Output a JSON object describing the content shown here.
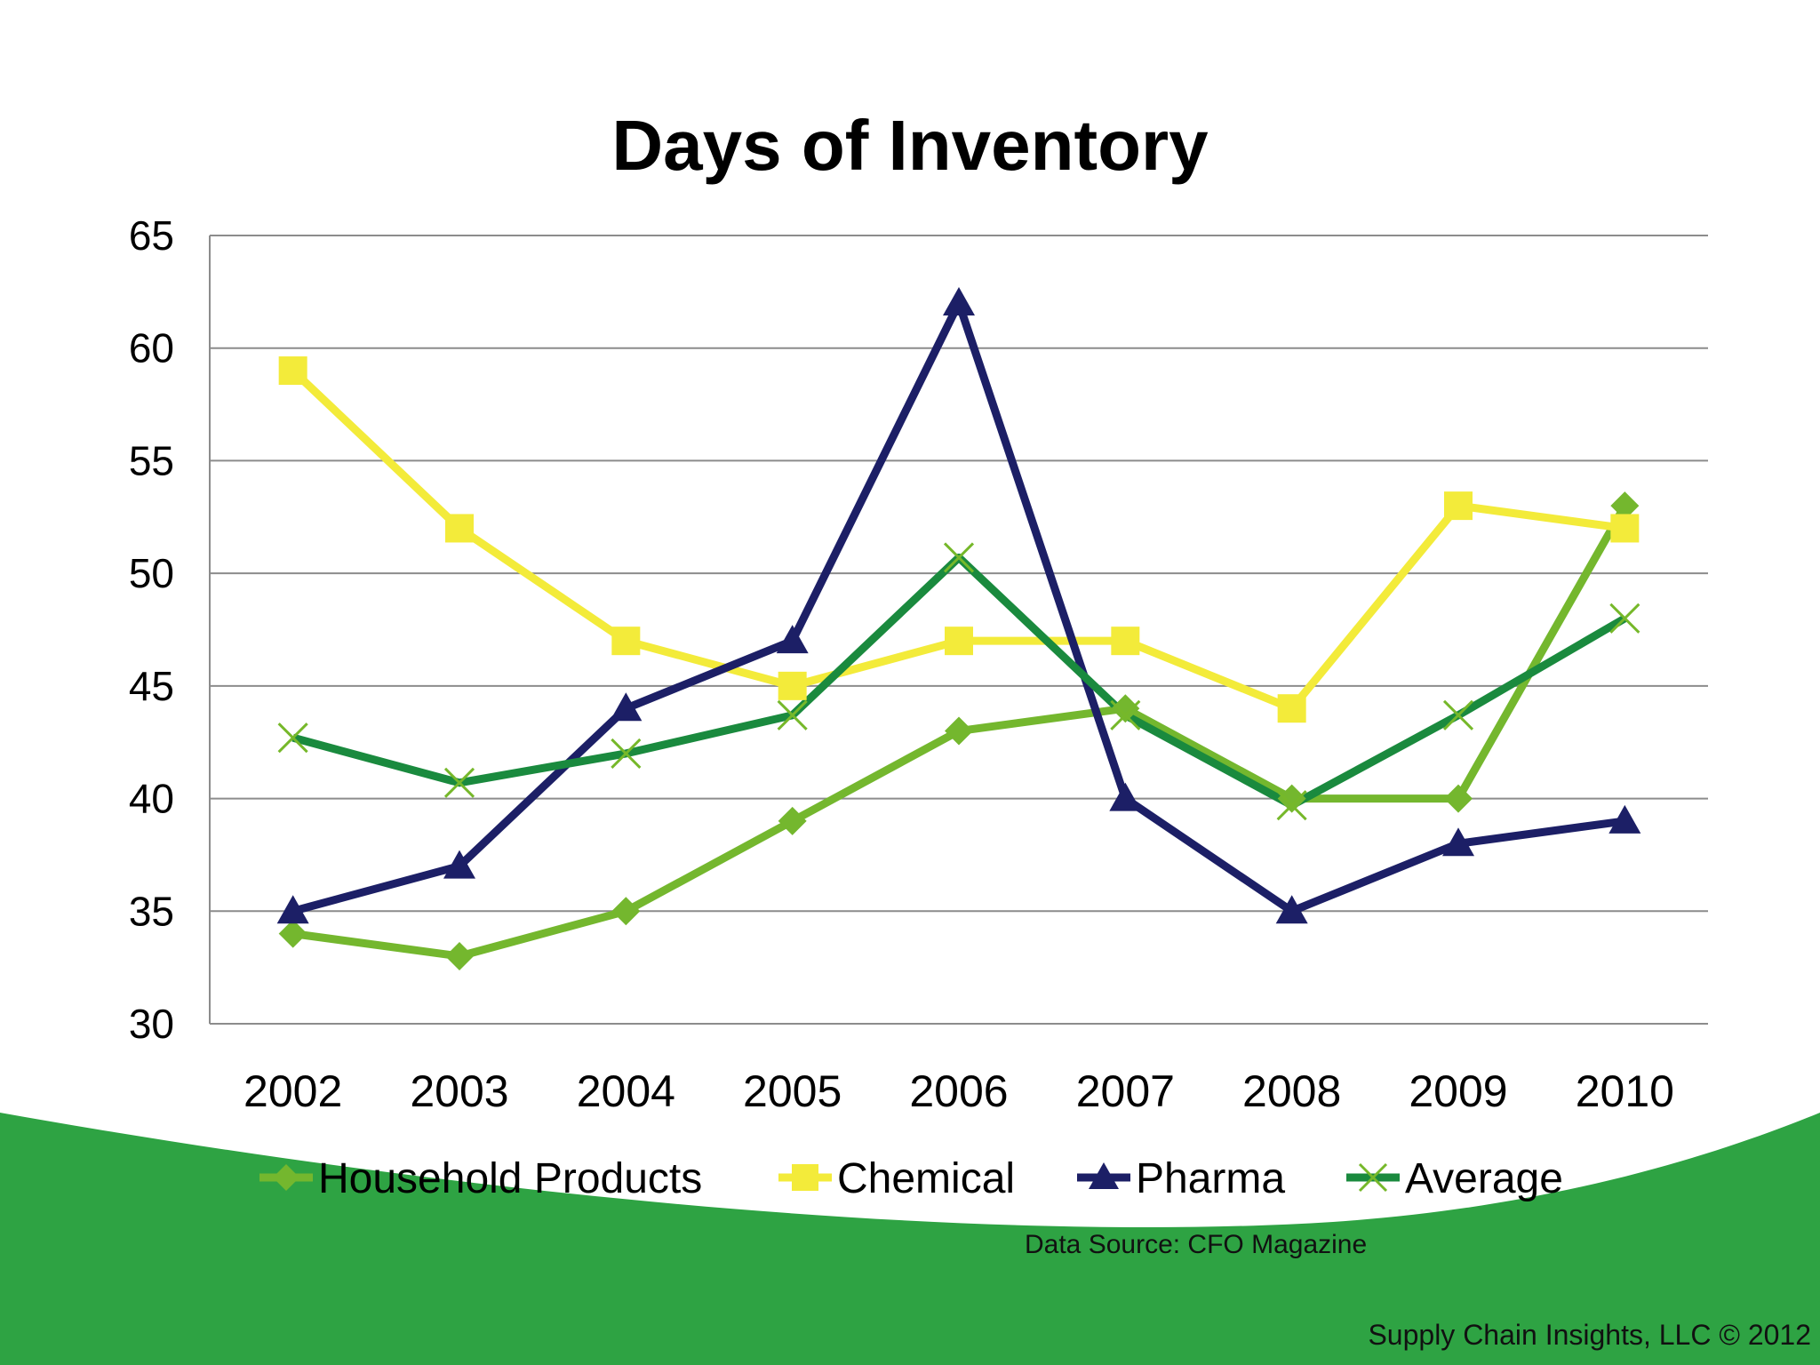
{
  "slide": {
    "source_note": "Data Source:  CFO Magazine",
    "copyright": "Supply Chain Insights, LLC © 2012",
    "background_band_color": "#2ea343"
  },
  "chart_data": {
    "type": "line",
    "title": "Days of Inventory",
    "xlabel": "",
    "ylabel": "",
    "ylim": [
      30,
      65
    ],
    "yticks": [
      "30",
      "35",
      "40",
      "45",
      "50",
      "55",
      "60",
      "65"
    ],
    "categories": [
      "2002",
      "2003",
      "2004",
      "2005",
      "2006",
      "2007",
      "2008",
      "2009",
      "2010"
    ],
    "grid": true,
    "legend_position": "bottom",
    "series": [
      {
        "name": "Household Products",
        "color": "#74b72e",
        "marker": "diamond",
        "values": [
          34,
          33,
          35,
          39,
          43,
          44,
          40,
          40,
          53
        ]
      },
      {
        "name": "Chemical",
        "color": "#f3eb3a",
        "marker": "square",
        "values": [
          59,
          52,
          47,
          45,
          47,
          47,
          44,
          53,
          52
        ]
      },
      {
        "name": "Pharma",
        "color": "#1c1f66",
        "marker": "triangle",
        "values": [
          35,
          37,
          44,
          47,
          62,
          40,
          35,
          38,
          39
        ]
      },
      {
        "name": "Average",
        "color": "#1a8a3e",
        "marker": "x",
        "values": [
          42.7,
          40.7,
          42,
          43.7,
          50.7,
          43.7,
          39.7,
          43.7,
          48
        ]
      }
    ]
  }
}
